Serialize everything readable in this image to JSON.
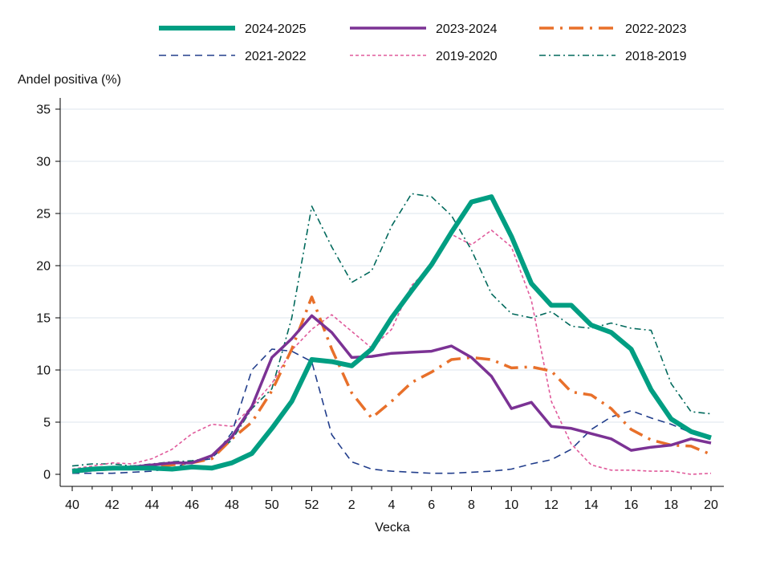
{
  "chart_data": {
    "type": "line",
    "title": "",
    "ylabel": "Andel positiva (%)",
    "xlabel": "Vecka",
    "ylim": [
      0,
      35
    ],
    "yticks": [
      0,
      5,
      10,
      15,
      20,
      25,
      30,
      35
    ],
    "x_weeks": [
      "40",
      "41",
      "42",
      "43",
      "44",
      "45",
      "46",
      "47",
      "48",
      "49",
      "50",
      "51",
      "52",
      "1",
      "2",
      "3",
      "4",
      "5",
      "6",
      "7",
      "8",
      "9",
      "10",
      "11",
      "12",
      "13",
      "14",
      "15",
      "16",
      "17",
      "18",
      "19",
      "20"
    ],
    "xtick_labels": [
      "40",
      "42",
      "44",
      "46",
      "48",
      "50",
      "52",
      "2",
      "4",
      "6",
      "8",
      "10",
      "12",
      "14",
      "16",
      "18",
      "20"
    ],
    "grid": "horizontal",
    "legend_position": "top",
    "series": [
      {
        "name": "2024-2025",
        "color": "#009e82",
        "style": "thick-solid",
        "values": [
          0.3,
          0.5,
          0.6,
          0.6,
          0.6,
          0.5,
          0.7,
          0.6,
          1.1,
          2.0,
          4.4,
          7.0,
          11.0,
          10.8,
          10.4,
          12.0,
          15.0,
          17.6,
          20.1,
          23.2,
          26.1,
          26.6,
          22.8,
          18.3,
          16.2,
          16.2,
          14.3,
          13.6,
          12.0,
          8.1,
          5.3,
          4.1,
          3.5
        ]
      },
      {
        "name": "2023-2024",
        "color": "#7b3294",
        "style": "solid",
        "values": [
          0.2,
          0.4,
          0.6,
          0.7,
          0.9,
          1.1,
          1.1,
          1.8,
          3.6,
          6.5,
          11.2,
          13.0,
          15.2,
          13.6,
          11.2,
          11.3,
          11.6,
          11.7,
          11.8,
          12.3,
          11.2,
          9.4,
          6.3,
          6.9,
          4.6,
          4.4,
          3.9,
          3.4,
          2.3,
          2.6,
          2.8,
          3.4,
          3.0
        ]
      },
      {
        "name": "2022-2023",
        "color": "#e8702a",
        "style": "long-dash-dot",
        "values": [
          0.2,
          0.4,
          0.5,
          0.6,
          0.7,
          0.9,
          1.1,
          1.5,
          3.4,
          5.0,
          8.0,
          12.0,
          17.0,
          12.0,
          7.8,
          5.4,
          7.0,
          8.8,
          9.8,
          11.0,
          11.2,
          11.0,
          10.2,
          10.3,
          9.9,
          7.9,
          7.6,
          6.3,
          4.3,
          3.3,
          2.8,
          2.7,
          1.9
        ]
      },
      {
        "name": "2021-2022",
        "color": "#223e8c",
        "style": "dash",
        "values": [
          0.1,
          0.1,
          0.1,
          0.2,
          0.3,
          0.6,
          1.2,
          1.5,
          4.0,
          10.0,
          12.0,
          11.8,
          10.8,
          3.8,
          1.2,
          0.5,
          0.3,
          0.2,
          0.1,
          0.1,
          0.2,
          0.3,
          0.5,
          1.0,
          1.4,
          2.4,
          4.3,
          5.5,
          6.1,
          5.4,
          4.8,
          4.0,
          3.3
        ]
      },
      {
        "name": "2019-2020",
        "color": "#e05a9b",
        "style": "short-dash",
        "values": [
          0.5,
          0.8,
          1.1,
          1.0,
          1.5,
          2.4,
          3.9,
          4.8,
          4.6,
          6.5,
          8.7,
          11.9,
          13.9,
          15.3,
          13.7,
          12.1,
          13.9,
          18.1,
          20.0,
          23.0,
          22.0,
          23.4,
          21.8,
          16.7,
          7.0,
          2.9,
          0.9,
          0.4,
          0.4,
          0.3,
          0.3,
          0.0,
          0.1
        ]
      },
      {
        "name": "2018-2019",
        "color": "#00695c",
        "style": "dash-dot",
        "values": [
          0.8,
          1.0,
          1.0,
          0.8,
          1.0,
          1.2,
          1.3,
          1.6,
          3.3,
          6.3,
          8.2,
          15.0,
          25.7,
          21.8,
          18.4,
          19.5,
          23.8,
          26.9,
          26.6,
          24.8,
          21.5,
          17.3,
          15.4,
          15.0,
          15.6,
          14.2,
          14.0,
          14.5,
          14.0,
          13.8,
          8.7,
          6.0,
          5.8
        ]
      }
    ]
  }
}
